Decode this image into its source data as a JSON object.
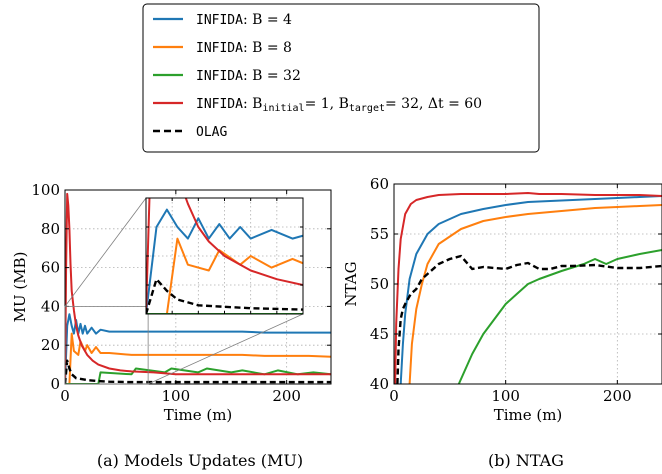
{
  "legend": {
    "entries": [
      {
        "mono": "INFIDA",
        "rest": ": B = 4",
        "color": "#1f77b4",
        "dash": false
      },
      {
        "mono": "INFIDA",
        "rest": ": B = 8",
        "color": "#ff7f0e",
        "dash": false
      },
      {
        "mono": "INFIDA",
        "rest": ": B = 32",
        "color": "#2ca02c",
        "dash": false
      },
      {
        "mono": "INFIDA",
        "rest": ": B",
        "sub1": "initial",
        "mid": "= 1, B",
        "sub2": "target",
        "tail": "= 32, Δt = 60",
        "color": "#d62728",
        "dash": false
      },
      {
        "mono": "OLAG",
        "rest": "",
        "color": "#000000",
        "dash": true
      }
    ]
  },
  "chart_data": [
    {
      "type": "line",
      "caption": "(a)  Models Updates (MU)",
      "xlabel": "Time (m)",
      "ylabel": "MU (MB)",
      "xlim": [
        0,
        240
      ],
      "ylim": [
        0,
        100
      ],
      "xticks": [
        0,
        100,
        200
      ],
      "yticks": [
        0,
        20,
        40,
        60,
        80,
        100
      ],
      "grid": true,
      "inset": {
        "xlim": [
          0,
          30
        ],
        "ylim": [
          0,
          40
        ]
      },
      "series": [
        {
          "name": "INFIDA: B = 4",
          "color": "#1f77b4",
          "x": [
            0,
            2,
            4,
            6,
            8,
            10,
            12,
            14,
            16,
            18,
            20,
            24,
            28,
            32,
            40,
            60,
            80,
            100,
            120,
            140,
            160,
            180,
            200,
            220,
            240
          ],
          "y": [
            0,
            30,
            36,
            30,
            26,
            33,
            26,
            31,
            26,
            30,
            26,
            29,
            26,
            28,
            27,
            27,
            27,
            27,
            27,
            27,
            27,
            26.5,
            26.5,
            26.5,
            26.5
          ]
        },
        {
          "name": "INFIDA: B = 8",
          "color": "#ff7f0e",
          "x": [
            0,
            4,
            6,
            8,
            12,
            14,
            18,
            20,
            24,
            28,
            32,
            40,
            60,
            80,
            100,
            120,
            140,
            160,
            180,
            200,
            220,
            240
          ],
          "y": [
            0,
            0,
            26,
            17,
            15,
            22,
            17,
            20,
            16,
            19,
            16,
            16,
            15,
            15,
            15,
            15,
            15,
            15,
            14.5,
            14.5,
            14.5,
            14
          ]
        },
        {
          "name": "INFIDA: B = 32",
          "color": "#2ca02c",
          "x": [
            0,
            30,
            32,
            60,
            64,
            90,
            96,
            120,
            128,
            150,
            160,
            180,
            192,
            210,
            224,
            240
          ],
          "y": [
            0,
            0,
            6,
            5,
            8,
            6,
            8,
            6,
            8,
            6,
            7,
            5,
            7,
            5,
            6,
            5
          ]
        },
        {
          "name": "INFIDA: Binitial= 1, Btarget= 32, Δt = 60",
          "color": "#d62728",
          "x": [
            0,
            1,
            2,
            3,
            4,
            5,
            6,
            8,
            10,
            12,
            15,
            20,
            25,
            30,
            40,
            50,
            60,
            80,
            100,
            120,
            150,
            180,
            210,
            240
          ],
          "y": [
            0,
            60,
            98,
            92,
            80,
            62,
            48,
            38,
            30,
            25,
            20,
            15,
            12,
            10,
            8,
            7,
            6.5,
            6,
            5,
            5,
            5,
            5,
            5,
            5
          ]
        },
        {
          "name": "OLAG",
          "color": "#000000",
          "dash": true,
          "x": [
            0,
            2,
            4,
            6,
            8,
            10,
            15,
            20,
            30,
            40,
            60,
            80,
            100,
            120,
            140,
            160,
            180,
            200,
            220,
            240
          ],
          "y": [
            0,
            12,
            8,
            5,
            4,
            3,
            2.5,
            2,
            1.5,
            1.2,
            1,
            1,
            1,
            1,
            1,
            1,
            1,
            1,
            1,
            1
          ]
        }
      ]
    },
    {
      "type": "line",
      "caption": "(b)  NTAG",
      "xlabel": "Time (m)",
      "ylabel": "NTAG",
      "xlim": [
        0,
        240
      ],
      "ylim": [
        40,
        60
      ],
      "xticks": [
        0,
        100,
        200
      ],
      "yticks": [
        40,
        45,
        50,
        55,
        60
      ],
      "grid": true,
      "series": [
        {
          "name": "INFIDA: B = 4",
          "color": "#1f77b4",
          "x": [
            6,
            8,
            10,
            14,
            20,
            30,
            40,
            60,
            80,
            100,
            120,
            140,
            160,
            180,
            200,
            220,
            240
          ],
          "y": [
            40,
            44,
            47,
            50.5,
            53,
            55,
            56,
            57,
            57.5,
            57.9,
            58.2,
            58.3,
            58.4,
            58.5,
            58.6,
            58.7,
            58.8
          ]
        },
        {
          "name": "INFIDA: B = 8",
          "color": "#ff7f0e",
          "x": [
            14,
            16,
            20,
            25,
            30,
            40,
            60,
            80,
            100,
            120,
            140,
            160,
            180,
            200,
            220,
            240
          ],
          "y": [
            40,
            44,
            47.5,
            50,
            52,
            54,
            55.5,
            56.3,
            56.7,
            57,
            57.2,
            57.4,
            57.6,
            57.7,
            57.8,
            57.9
          ]
        },
        {
          "name": "INFIDA: B = 32",
          "color": "#2ca02c",
          "x": [
            58,
            70,
            80,
            90,
            100,
            110,
            120,
            130,
            150,
            170,
            180,
            190,
            200,
            220,
            240
          ],
          "y": [
            40,
            43,
            45,
            46.5,
            48,
            49,
            50,
            50.5,
            51.3,
            52,
            52.5,
            52,
            52.5,
            53,
            53.4
          ]
        },
        {
          "name": "INFIDA: Binitial= 1, Btarget= 32, Δt = 60",
          "color": "#d62728",
          "x": [
            1,
            2,
            4,
            6,
            10,
            15,
            20,
            30,
            40,
            60,
            80,
            100,
            120,
            130,
            150,
            180,
            200,
            220,
            240
          ],
          "y": [
            40,
            46,
            51.5,
            54.5,
            57,
            58,
            58.4,
            58.7,
            58.9,
            59,
            59,
            59,
            59.1,
            59,
            59,
            58.9,
            58.9,
            58.9,
            58.8
          ]
        },
        {
          "name": "OLAG",
          "color": "#000000",
          "dash": true,
          "x": [
            3,
            4,
            6,
            8,
            10,
            15,
            20,
            25,
            30,
            40,
            50,
            60,
            70,
            80,
            90,
            100,
            110,
            120,
            130,
            140,
            150,
            160,
            180,
            200,
            220,
            240
          ],
          "y": [
            40,
            43.5,
            46.5,
            47.5,
            48,
            49,
            49.5,
            50.5,
            51,
            52,
            52.5,
            52.8,
            51.5,
            51.7,
            51.6,
            51.5,
            51.9,
            52.1,
            51.5,
            51.5,
            51.8,
            51.8,
            51.9,
            51.6,
            51.6,
            51.8
          ]
        }
      ]
    }
  ]
}
